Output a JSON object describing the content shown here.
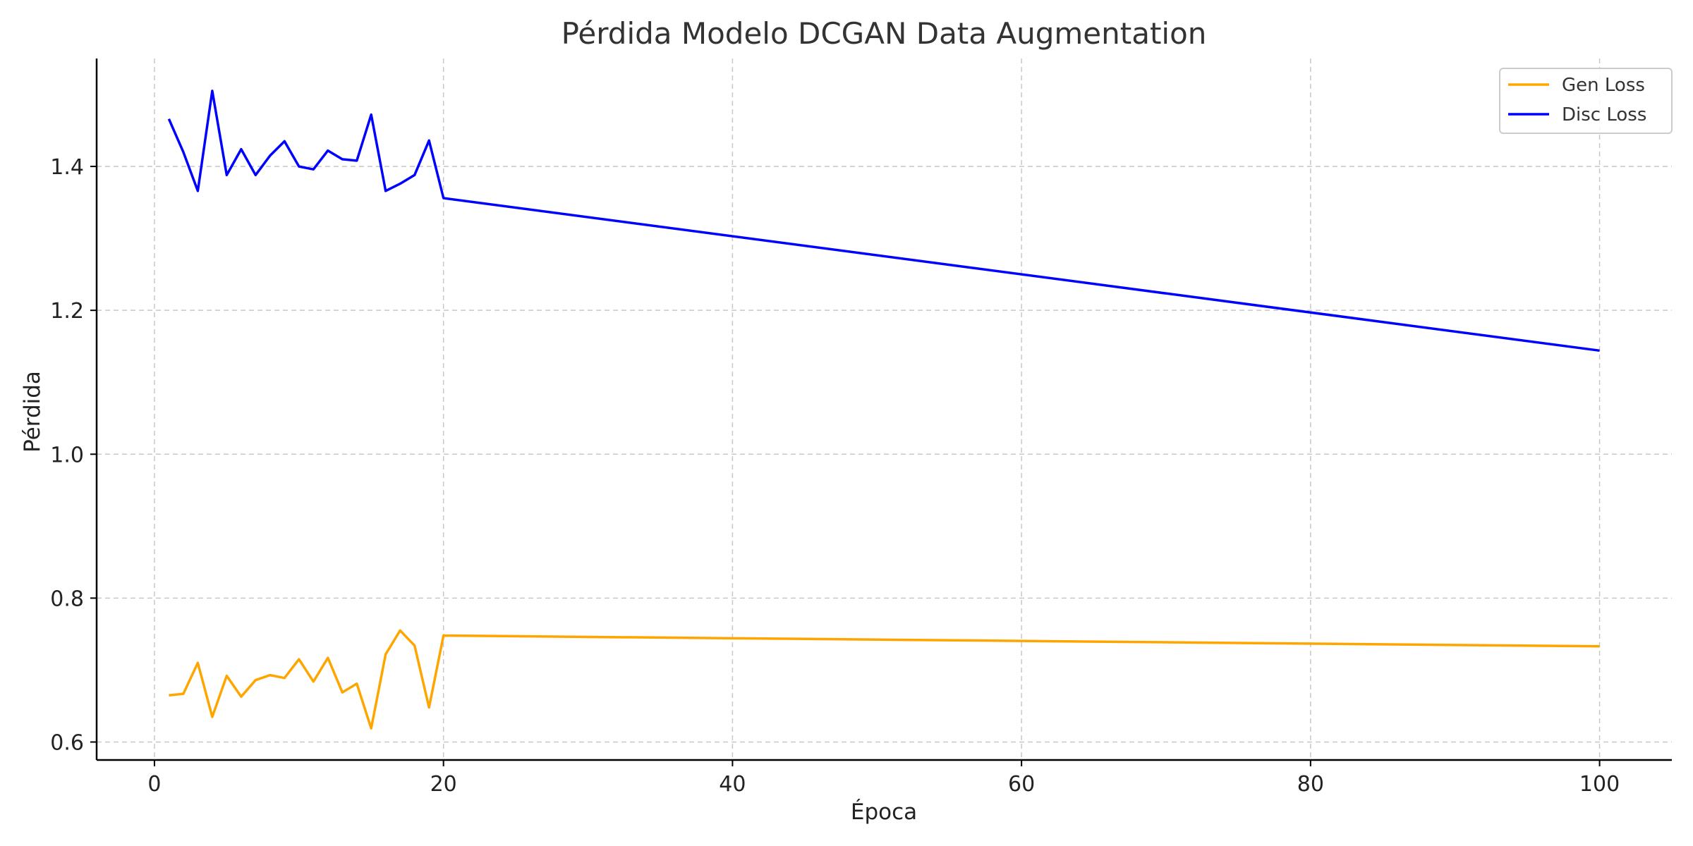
{
  "chart_data": {
    "type": "line",
    "title": "Pérdida Modelo DCGAN Data Augmentation",
    "xlabel": "Época",
    "ylabel": "Pérdida",
    "xlim": [
      -4,
      105
    ],
    "ylim": [
      0.575,
      1.55
    ],
    "xticks": [
      0,
      20,
      40,
      60,
      80,
      100
    ],
    "yticks": [
      0.6,
      0.8,
      1.0,
      1.2,
      1.4
    ],
    "xtick_labels": [
      "0",
      "20",
      "40",
      "60",
      "80",
      "100"
    ],
    "ytick_labels": [
      "0.6",
      "0.8",
      "1.0",
      "1.2",
      "1.4"
    ],
    "grid": true,
    "legend": "top-right",
    "x": [
      1,
      2,
      3,
      4,
      5,
      6,
      7,
      8,
      9,
      10,
      11,
      12,
      13,
      14,
      15,
      16,
      17,
      18,
      19,
      20,
      100
    ],
    "series": [
      {
        "name": "Gen Loss",
        "color": "#FFA500",
        "values": [
          0.665,
          0.667,
          0.71,
          0.635,
          0.692,
          0.663,
          0.686,
          0.693,
          0.689,
          0.715,
          0.684,
          0.717,
          0.669,
          0.681,
          0.619,
          0.722,
          0.755,
          0.734,
          0.648,
          0.748,
          0.733
        ]
      },
      {
        "name": "Disc Loss",
        "color": "#0000FF",
        "values": [
          1.466,
          1.42,
          1.366,
          1.505,
          1.388,
          1.424,
          1.388,
          1.415,
          1.435,
          1.4,
          1.396,
          1.422,
          1.41,
          1.408,
          1.472,
          1.366,
          1.376,
          1.388,
          1.436,
          1.356,
          1.144
        ]
      }
    ]
  }
}
